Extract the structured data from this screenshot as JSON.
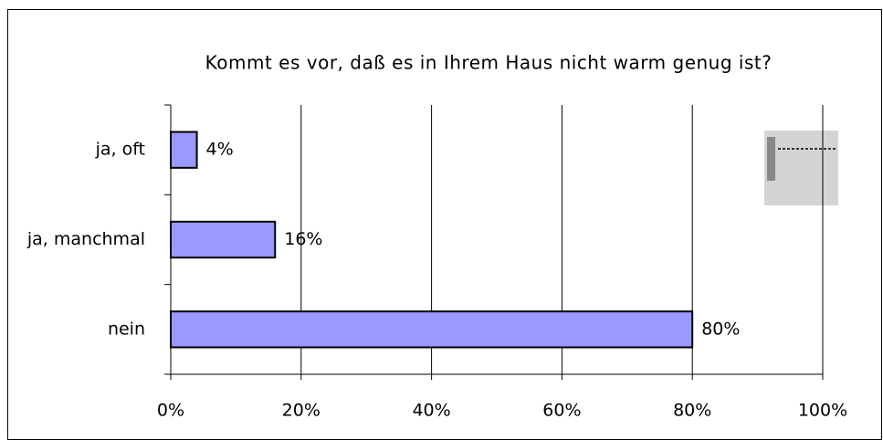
{
  "chart_data": {
    "type": "bar",
    "orientation": "horizontal",
    "title": "Kommt es vor, daß es in Ihrem Haus nicht warm genug ist?",
    "categories": [
      "ja, oft",
      "ja, manchmal",
      "nein"
    ],
    "values": [
      4,
      16,
      80
    ],
    "value_labels": [
      "4%",
      "16%",
      "80%"
    ],
    "color": "#9999ff",
    "xlim": [
      0,
      100
    ],
    "xticks": [
      {
        "value": 0,
        "label": "0%"
      },
      {
        "value": 20,
        "label": "20%"
      },
      {
        "value": 40,
        "label": "40%"
      },
      {
        "value": 60,
        "label": "60%"
      },
      {
        "value": 80,
        "label": "80%"
      },
      {
        "value": 100,
        "label": "100%"
      }
    ],
    "grid": true
  }
}
